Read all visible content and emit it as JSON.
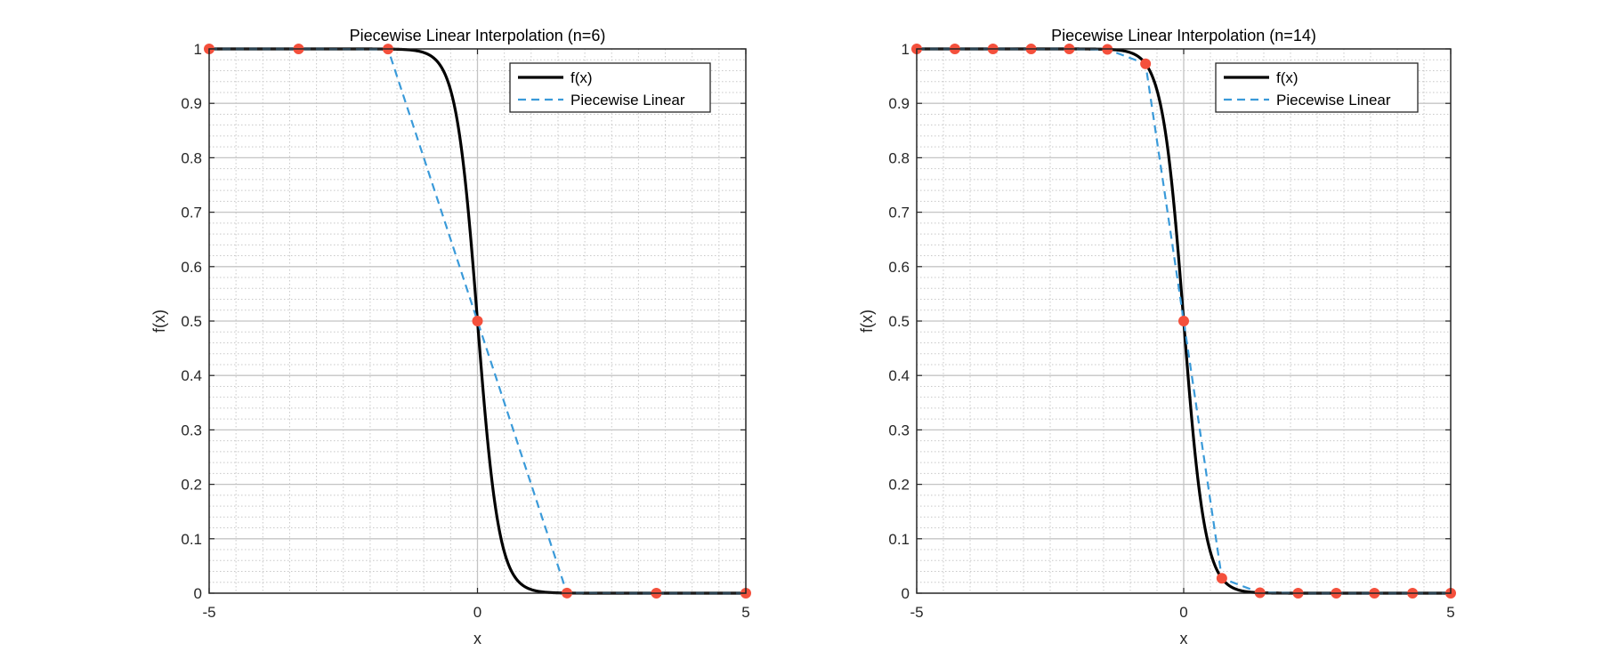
{
  "chart_data": [
    {
      "type": "line",
      "title": "Piecewise Linear Interpolation (n=6)",
      "xlabel": "x",
      "ylabel": "f(x)",
      "xlim": [
        -5,
        5
      ],
      "ylim": [
        0,
        1
      ],
      "xticks": [
        "-5",
        "0",
        "5"
      ],
      "yticks": [
        "0",
        "0.1",
        "0.2",
        "0.3",
        "0.4",
        "0.5",
        "0.6",
        "0.7",
        "0.8",
        "0.9",
        "1"
      ],
      "grid": true,
      "minor_grid": true,
      "legend_position": "top-right",
      "series": [
        {
          "name": "f(x)",
          "style": "solid",
          "color": "#000000",
          "function": "1/(1+exp(5x))"
        },
        {
          "name": "Piecewise Linear",
          "style": "dashed",
          "color": "#3a9ad9",
          "x": [
            -5,
            -3.3333,
            -1.6667,
            0,
            1.6667,
            3.3333,
            5
          ],
          "y": [
            1,
            1,
            0.9998,
            0.5,
            0.0002,
            0,
            0
          ]
        }
      ],
      "nodes": {
        "color": "#f4503c",
        "x": [
          -5,
          -3.3333,
          -1.6667,
          0,
          1.6667,
          3.3333,
          5
        ],
        "y": [
          1,
          1,
          0.9998,
          0.5,
          0.0002,
          0,
          0
        ]
      }
    },
    {
      "type": "line",
      "title": "Piecewise Linear Interpolation (n=14)",
      "xlabel": "x",
      "ylabel": "f(x)",
      "xlim": [
        -5,
        5
      ],
      "ylim": [
        0,
        1
      ],
      "xticks": [
        "-5",
        "0",
        "5"
      ],
      "yticks": [
        "0",
        "0.1",
        "0.2",
        "0.3",
        "0.4",
        "0.5",
        "0.6",
        "0.7",
        "0.8",
        "0.9",
        "1"
      ],
      "grid": true,
      "minor_grid": true,
      "legend_position": "top-right",
      "series": [
        {
          "name": "f(x)",
          "style": "solid",
          "color": "#000000",
          "function": "1/(1+exp(5x))"
        },
        {
          "name": "Piecewise Linear",
          "style": "dashed",
          "color": "#3a9ad9",
          "x": [
            -5,
            -4.2857,
            -3.5714,
            -2.8571,
            -2.1429,
            -1.4286,
            -0.7143,
            0,
            0.7143,
            1.4286,
            2.1429,
            2.8571,
            3.5714,
            4.2857,
            5
          ],
          "y": [
            1,
            1,
            1,
            0.9999,
            0.99998,
            0.9992,
            0.9726,
            0.5,
            0.0274,
            0.0008,
            2e-05,
            0,
            0,
            0,
            0
          ]
        }
      ],
      "nodes": {
        "color": "#f4503c",
        "x": [
          -5,
          -4.2857,
          -3.5714,
          -2.8571,
          -2.1429,
          -1.4286,
          -0.7143,
          0,
          0.7143,
          1.4286,
          2.1429,
          2.8571,
          3.5714,
          4.2857,
          5
        ],
        "y": [
          1,
          1,
          1,
          0.9999,
          0.99998,
          0.9992,
          0.9726,
          0.5,
          0.0274,
          0.0008,
          2e-05,
          0,
          0,
          0,
          0
        ]
      }
    }
  ]
}
